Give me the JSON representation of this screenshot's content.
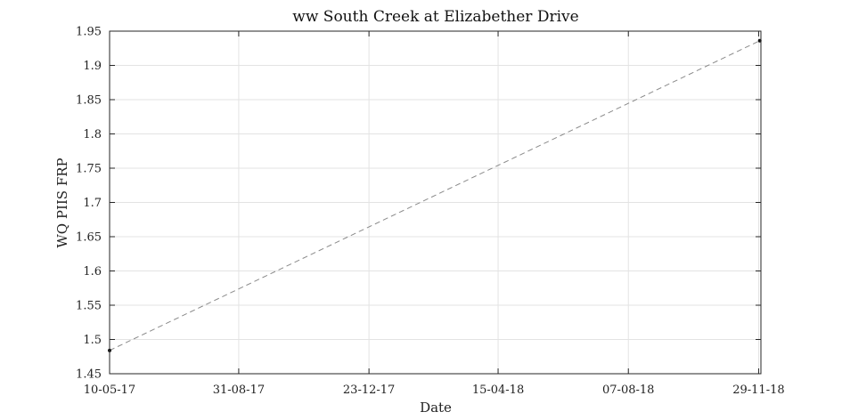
{
  "chart_data": {
    "type": "line",
    "title": "ww South Creek at Elizabether Drive",
    "xlabel": "Date",
    "ylabel": "WQ PIIS FRP",
    "x_type": "date",
    "xlim": [
      "2017-05-10",
      "2018-12-01"
    ],
    "ylim": [
      1.45,
      1.95
    ],
    "x_ticks": [
      {
        "date": "2017-05-10",
        "label": "10-05-17"
      },
      {
        "date": "2017-08-31",
        "label": "31-08-17"
      },
      {
        "date": "2017-12-23",
        "label": "23-12-17"
      },
      {
        "date": "2018-04-15",
        "label": "15-04-18"
      },
      {
        "date": "2018-08-07",
        "label": "07-08-18"
      },
      {
        "date": "2018-11-29",
        "label": "29-11-18"
      }
    ],
    "y_ticks": [
      {
        "value": 1.45,
        "label": "1.45"
      },
      {
        "value": 1.5,
        "label": "1.5"
      },
      {
        "value": 1.55,
        "label": "1.55"
      },
      {
        "value": 1.6,
        "label": "1.6"
      },
      {
        "value": 1.65,
        "label": "1.65"
      },
      {
        "value": 1.7,
        "label": "1.7"
      },
      {
        "value": 1.75,
        "label": "1.75"
      },
      {
        "value": 1.8,
        "label": "1.8"
      },
      {
        "value": 1.85,
        "label": "1.85"
      },
      {
        "value": 1.9,
        "label": "1.9"
      },
      {
        "value": 1.95,
        "label": "1.95"
      }
    ],
    "grid": true,
    "series": [
      {
        "x": [
          "2017-05-10",
          "2018-11-30"
        ],
        "y": [
          1.484,
          1.936
        ],
        "line_style": "dashed",
        "line_color": "#8a8a8a",
        "marker_color": "#111111"
      }
    ]
  }
}
